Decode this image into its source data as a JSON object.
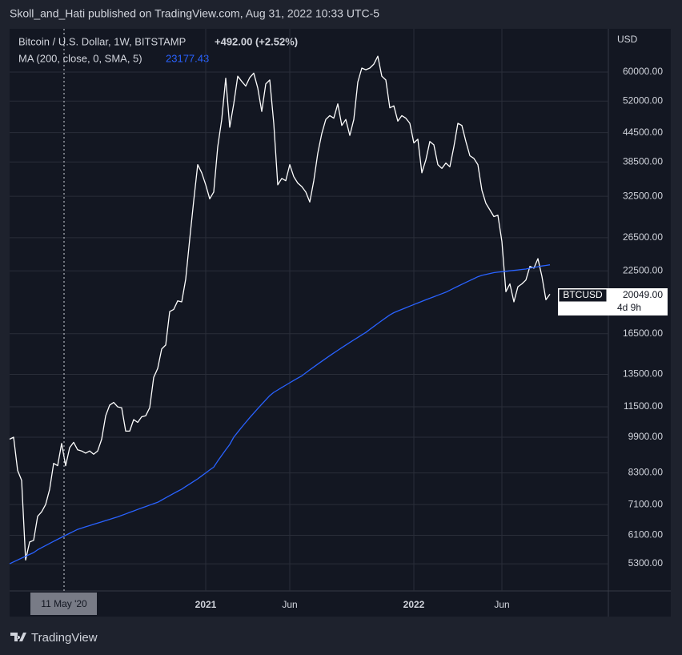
{
  "chart_data": {
    "type": "line",
    "attribution": "Skoll_and_Hati published on TradingView.com, Aug 31, 2022 10:33 UTC-5",
    "title": "Bitcoin / U.S. Dollar, 1W, BITSTAMP",
    "change": "+492.00 (+2.52%)",
    "indicator_label": "MA (200, close, 0, SMA, 5)",
    "indicator_value": "23177.43",
    "currency": "USD",
    "crosshair_label": "11 May '20",
    "last_value_label": "20049.00",
    "countdown": "4d 9h",
    "brand": "TradingView",
    "log_scale": true,
    "grid": true,
    "categories": [
      null,
      null,
      null,
      null,
      null,
      null,
      null,
      null,
      null,
      null,
      null,
      null,
      null,
      null,
      null,
      null,
      null,
      null,
      null,
      null,
      null,
      null,
      null,
      null,
      null,
      null,
      null,
      null,
      null,
      null,
      null,
      null,
      null,
      null,
      null,
      null,
      null,
      null,
      null,
      null,
      null,
      null,
      null,
      null,
      null,
      null,
      null,
      null,
      null,
      "2021",
      null,
      null,
      null,
      null,
      null,
      null,
      null,
      null,
      null,
      null,
      null,
      null,
      null,
      null,
      null,
      null,
      null,
      null,
      null,
      null,
      "Jun",
      null,
      null,
      null,
      null,
      null,
      null,
      null,
      null,
      null,
      null,
      null,
      null,
      null,
      null,
      null,
      null,
      null,
      null,
      null,
      null,
      null,
      null,
      null,
      null,
      null,
      null,
      null,
      null,
      null,
      null,
      "2022",
      null,
      null,
      null,
      null,
      null,
      null,
      null,
      null,
      null,
      null,
      null,
      null,
      null,
      null,
      null,
      null,
      null,
      null,
      null,
      null,
      null,
      "Jun",
      null,
      null,
      null,
      null,
      null,
      null,
      null,
      null,
      null,
      null,
      null,
      null
    ],
    "series": [
      {
        "name": "BTCUSD",
        "color": "#ffffff",
        "values": [
          9800,
          9900,
          8400,
          8000,
          5400,
          5900,
          5950,
          6700,
          6850,
          7100,
          7650,
          8700,
          8600,
          9600,
          8600,
          9400,
          9650,
          9300,
          9250,
          9150,
          9250,
          9100,
          9250,
          9800,
          11000,
          11600,
          11750,
          11500,
          11450,
          10200,
          10200,
          10800,
          10650,
          10950,
          11000,
          11450,
          13300,
          13900,
          15300,
          15600,
          18400,
          18600,
          19400,
          19300,
          21600,
          26300,
          31800,
          38000,
          36500,
          34400,
          32100,
          33200,
          41500,
          47500,
          58200,
          45700,
          51300,
          58800,
          57300,
          56000,
          58400,
          59700,
          55500,
          49400,
          56600,
          57700,
          46600,
          34400,
          35500,
          35100,
          38000,
          35800,
          34700,
          34100,
          33200,
          31600,
          35100,
          40200,
          44300,
          47500,
          48400,
          47800,
          51300,
          46100,
          47500,
          43900,
          47500,
          57100,
          61200,
          60700,
          61200,
          62400,
          64900,
          58800,
          57700,
          50300,
          50800,
          47100,
          48400,
          47800,
          46600,
          42300,
          43100,
          36500,
          38900,
          42600,
          41900,
          38000,
          37300,
          38300,
          37600,
          41500,
          46600,
          46100,
          42600,
          39700,
          39200,
          38000,
          33500,
          31400,
          30400,
          29400,
          29600,
          26000,
          20300,
          21100,
          19300,
          20800,
          21100,
          21500,
          23000,
          22800,
          23900,
          21900,
          19500,
          20049
        ]
      },
      {
        "name": "MA",
        "color": "#2962ff",
        "values": [
          5300,
          5350,
          5400,
          5450,
          5500,
          5550,
          5600,
          5680,
          5740,
          5800,
          5860,
          5920,
          5980,
          6040,
          6100,
          6160,
          6220,
          6280,
          6320,
          6360,
          6400,
          6440,
          6480,
          6520,
          6560,
          6600,
          6640,
          6680,
          6730,
          6780,
          6830,
          6880,
          6930,
          6980,
          7030,
          7080,
          7130,
          7180,
          7260,
          7340,
          7420,
          7500,
          7580,
          7660,
          7760,
          7860,
          7960,
          8060,
          8180,
          8300,
          8420,
          8540,
          8800,
          9050,
          9300,
          9550,
          9900,
          10150,
          10400,
          10650,
          10900,
          11150,
          11400,
          11650,
          11900,
          12150,
          12350,
          12500,
          12650,
          12800,
          12950,
          13100,
          13250,
          13400,
          13600,
          13800,
          14000,
          14200,
          14400,
          14600,
          14800,
          15000,
          15200,
          15400,
          15600,
          15800,
          16000,
          16200,
          16400,
          16600,
          16850,
          17100,
          17350,
          17600,
          17850,
          18100,
          18300,
          18450,
          18600,
          18750,
          18900,
          19050,
          19200,
          19350,
          19500,
          19650,
          19800,
          19950,
          20100,
          20250,
          20450,
          20650,
          20850,
          21050,
          21250,
          21450,
          21650,
          21850,
          22000,
          22100,
          22200,
          22300,
          22350,
          22400,
          22450,
          22500,
          22550,
          22600,
          22650,
          22700,
          22800,
          22880,
          22960,
          23040,
          23110,
          23177.43
        ]
      }
    ],
    "ylim": [
      4635,
      73700
    ],
    "yticks": [
      {
        "value": 60000,
        "label": "60000.00"
      },
      {
        "value": 52000,
        "label": "52000.00"
      },
      {
        "value": 44500,
        "label": "44500.00"
      },
      {
        "value": 38500,
        "label": "38500.00"
      },
      {
        "value": 32500,
        "label": "32500.00"
      },
      {
        "value": 26500,
        "label": "26500.00"
      },
      {
        "value": 22500,
        "label": "22500.00"
      },
      {
        "value": 16500,
        "label": "16500.00"
      },
      {
        "value": 13500,
        "label": "13500.00"
      },
      {
        "value": 11500,
        "label": "11500.00"
      },
      {
        "value": 9900,
        "label": "9900.00"
      },
      {
        "value": 8300,
        "label": "8300.00"
      },
      {
        "value": 7100,
        "label": "7100.00"
      },
      {
        "value": 6100,
        "label": "6100.00"
      },
      {
        "value": 5300,
        "label": "5300.00"
      }
    ]
  }
}
